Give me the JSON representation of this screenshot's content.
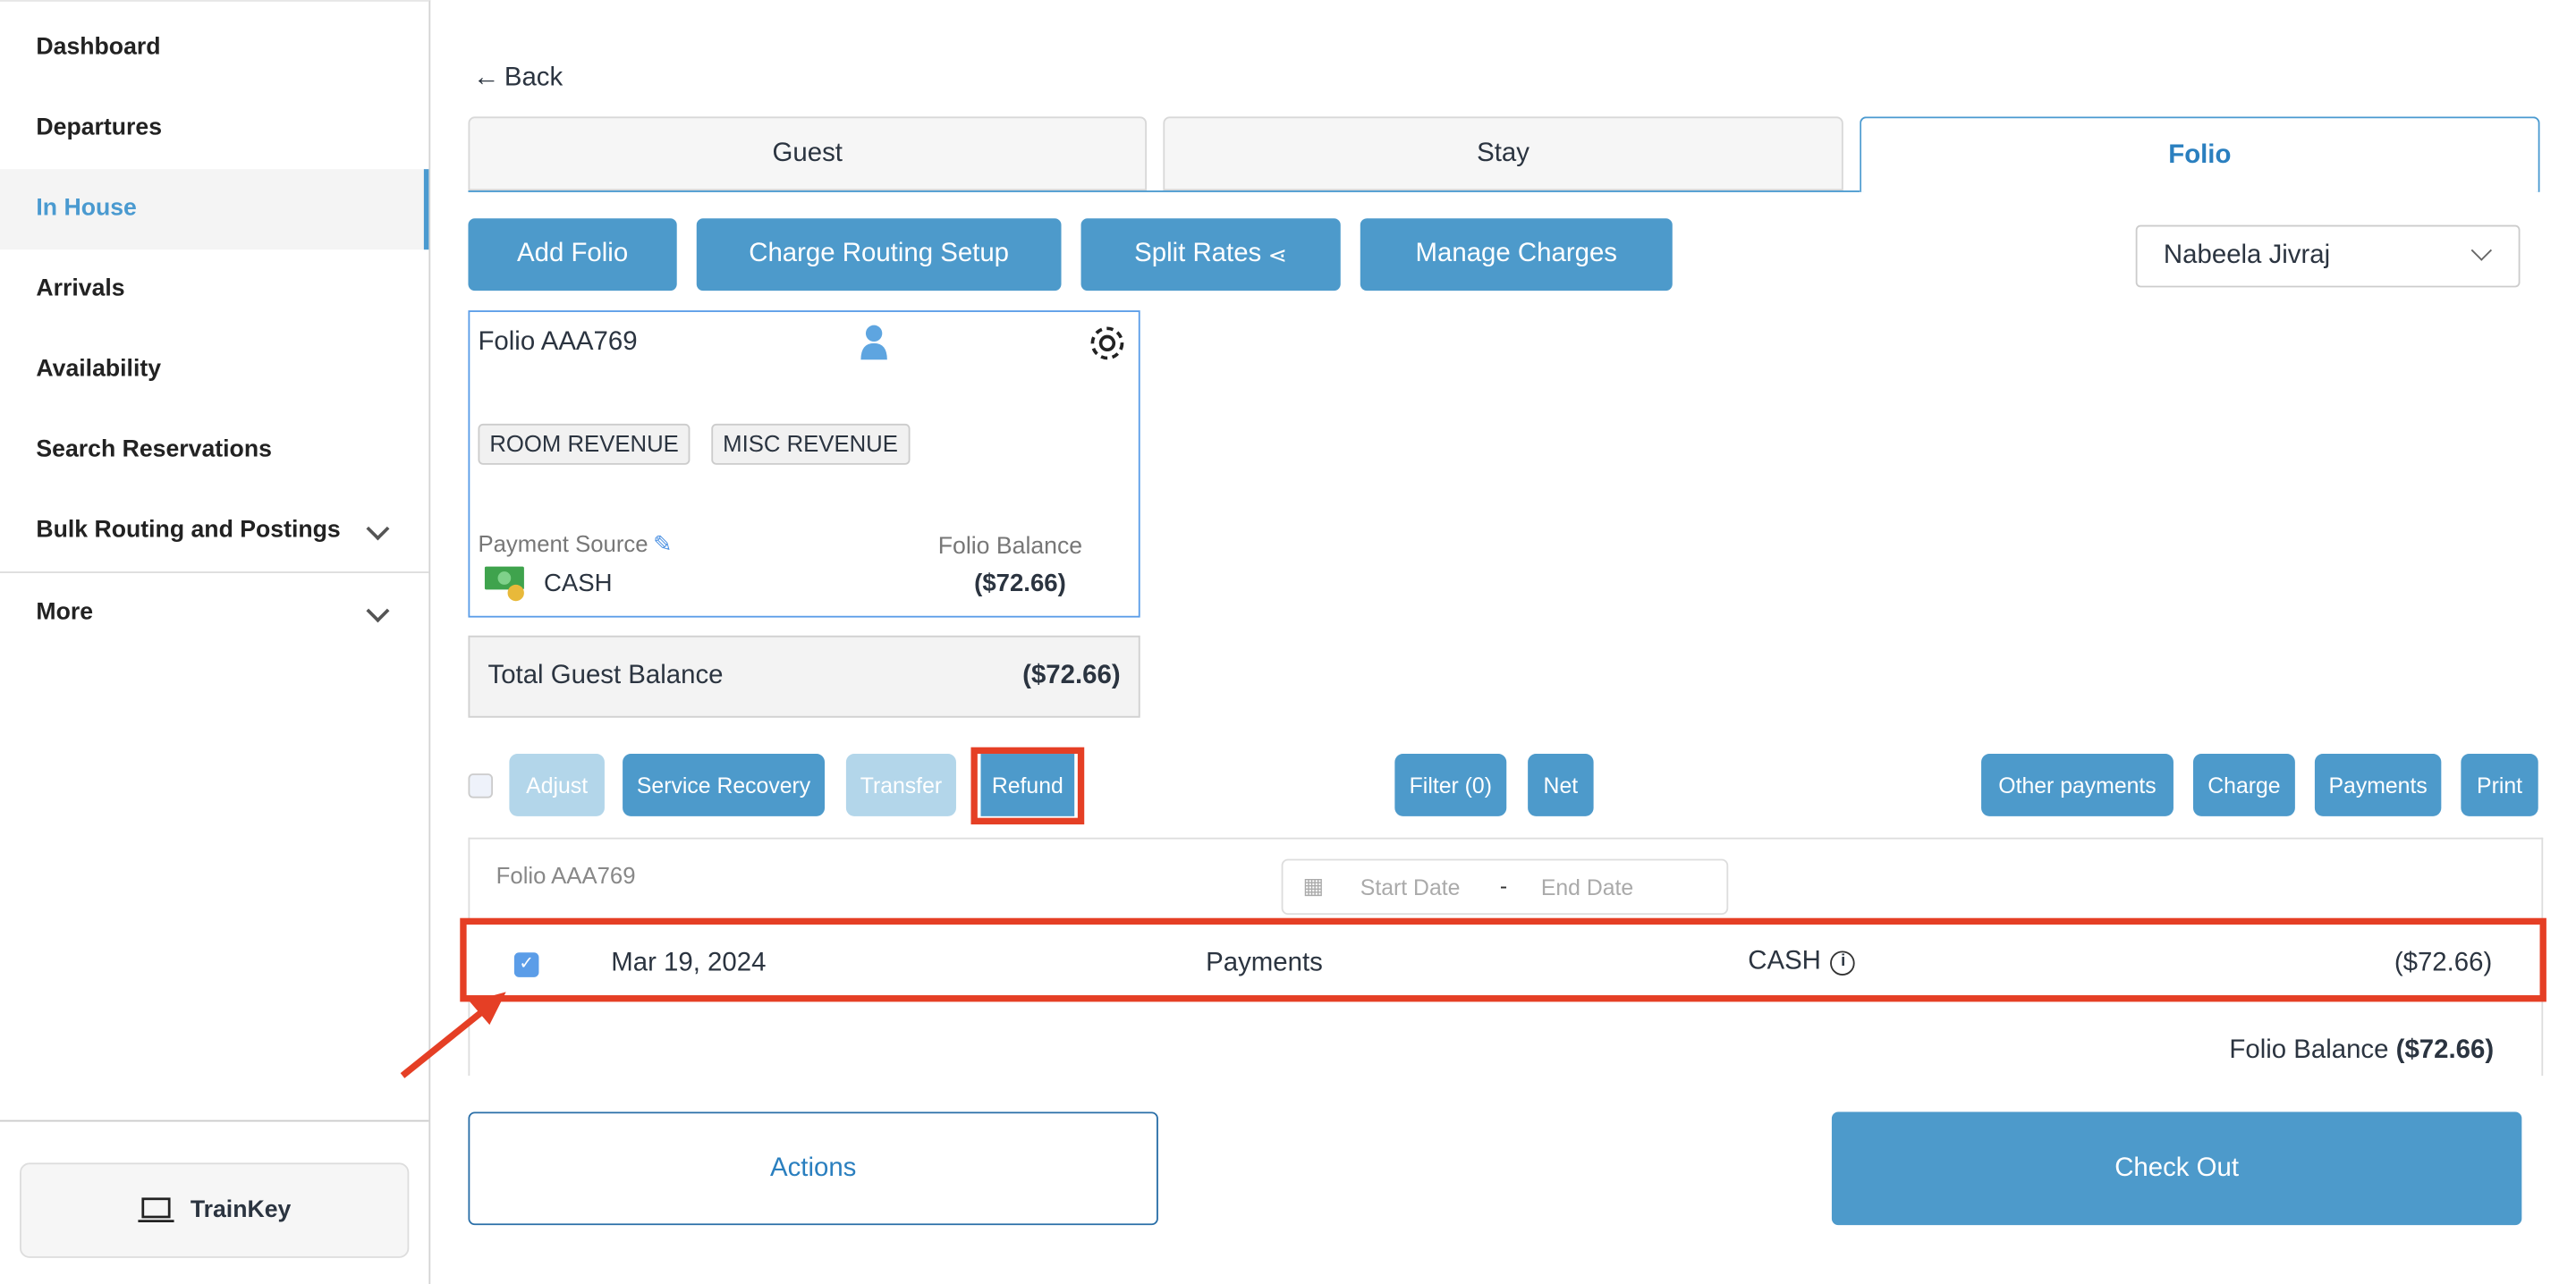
{
  "sidebar": {
    "items": [
      {
        "label": "Dashboard"
      },
      {
        "label": "Departures"
      },
      {
        "label": "In House"
      },
      {
        "label": "Arrivals"
      },
      {
        "label": "Availability"
      },
      {
        "label": "Search Reservations"
      },
      {
        "label": "Bulk Routing and Postings"
      },
      {
        "label": "More"
      }
    ],
    "active": "In House",
    "trainkey": "TrainKey"
  },
  "back": "Back",
  "tabs": [
    {
      "label": "Guest"
    },
    {
      "label": "Stay"
    },
    {
      "label": "Folio"
    }
  ],
  "toolbar": {
    "add_folio": "Add Folio",
    "charge_routing": "Charge Routing Setup",
    "split_rates": "Split Rates",
    "manage_charges": "Manage Charges",
    "guest_select": "Nabeela Jivraj"
  },
  "folio_card": {
    "name": "Folio AAA769",
    "tags": [
      "ROOM REVENUE",
      "MISC REVENUE"
    ],
    "payment_source_label": "Payment Source",
    "payment_source": "CASH",
    "balance_label": "Folio Balance",
    "balance": "($72.66)"
  },
  "total": {
    "label": "Total Guest Balance",
    "value": "($72.66)"
  },
  "actions": {
    "adjust": "Adjust",
    "service_recovery": "Service Recovery",
    "transfer": "Transfer",
    "refund": "Refund",
    "filter": "Filter (0)",
    "net": "Net",
    "other_payments": "Other payments",
    "charge": "Charge",
    "payments": "Payments",
    "print": "Print"
  },
  "ledger": {
    "folio_name": "Folio AAA769",
    "start_placeholder": "Start Date",
    "end_placeholder": "End Date",
    "rows": [
      {
        "date": "Mar 19, 2024",
        "type": "Payments",
        "method": "CASH",
        "amount": "($72.66)",
        "checked": true
      }
    ],
    "balance_label": "Folio Balance",
    "balance": "($72.66)"
  },
  "footer": {
    "actions": "Actions",
    "checkout": "Check Out"
  },
  "colors": {
    "accent": "#4d9acb",
    "highlight": "#e53f25"
  }
}
